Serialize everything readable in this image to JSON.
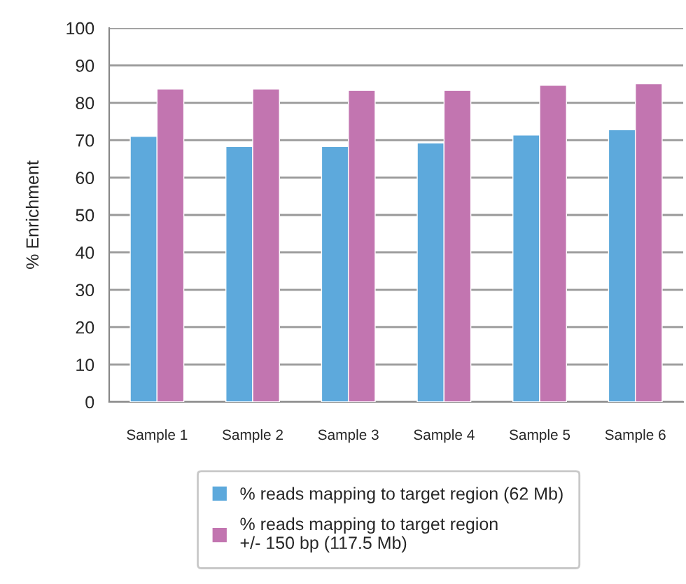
{
  "chart_data": {
    "type": "bar",
    "ylabel": "% Enrichment",
    "categories": [
      "Sample 1",
      "Sample 2",
      "Sample 3",
      "Sample 4",
      "Sample 5",
      "Sample 6"
    ],
    "series": [
      {
        "name": "% reads mapping to target region (62 Mb)",
        "color": "#5da9dc",
        "values": [
          71.0,
          68.3,
          68.3,
          69.3,
          71.4,
          72.8
        ]
      },
      {
        "name": "% reads mapping to target region\n+/- 150 bp (117.5 Mb)",
        "color": "#c275b0",
        "values": [
          83.7,
          83.7,
          83.3,
          83.3,
          84.7,
          85.1
        ]
      }
    ],
    "ylim": [
      0,
      100
    ],
    "yticks": [
      0,
      10,
      20,
      30,
      40,
      50,
      60,
      70,
      80,
      90,
      100
    ],
    "grid": "y",
    "legend": "bottom"
  }
}
